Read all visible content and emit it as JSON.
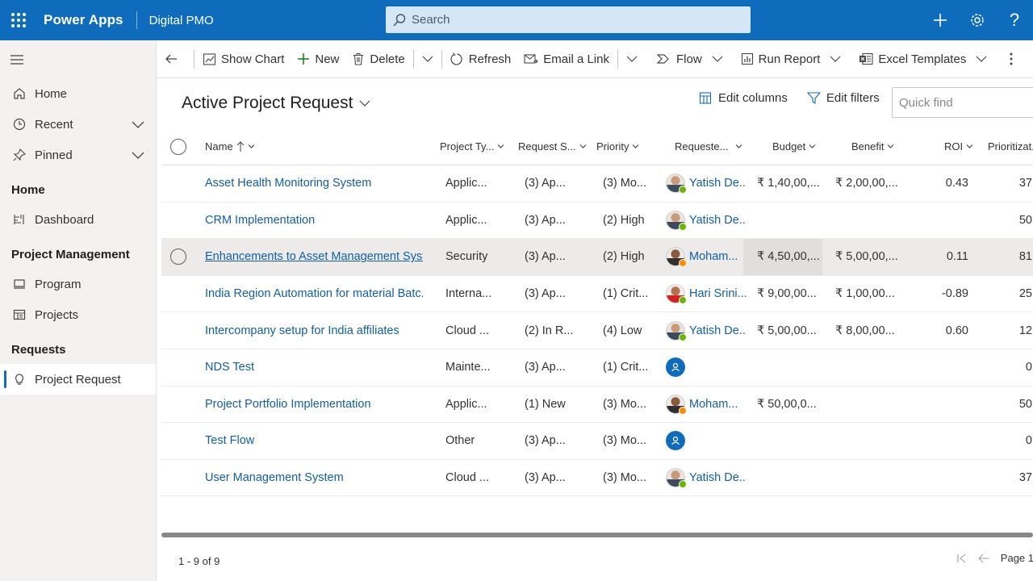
{
  "topbar": {
    "app_name": "Power Apps",
    "environment": "Digital PMO",
    "search_placeholder": "Search",
    "help_label": "?"
  },
  "sidebar": {
    "items_top": [
      {
        "label": "Home",
        "icon": "home-icon"
      },
      {
        "label": "Recent",
        "icon": "clock-icon"
      },
      {
        "label": "Pinned",
        "icon": "pin-icon"
      }
    ],
    "groups": [
      {
        "title": "Home",
        "items": [
          {
            "label": "Dashboard",
            "icon": "dashboard-icon"
          }
        ]
      },
      {
        "title": "Project Management",
        "items": [
          {
            "label": "Program",
            "icon": "monitor-icon"
          },
          {
            "label": "Projects",
            "icon": "projects-icon"
          }
        ]
      },
      {
        "title": "Requests",
        "items": [
          {
            "label": "Project Request",
            "icon": "lightbulb-icon"
          }
        ]
      }
    ]
  },
  "commandbar": {
    "show_chart": "Show Chart",
    "new": "New",
    "delete": "Delete",
    "refresh": "Refresh",
    "email_link": "Email a Link",
    "flow": "Flow",
    "run_report": "Run Report",
    "excel_templates": "Excel Templates"
  },
  "view": {
    "title": "Active Project Request",
    "edit_columns": "Edit columns",
    "edit_filters": "Edit filters",
    "quick_find_placeholder": "Quick find"
  },
  "grid": {
    "columns": [
      "Name",
      "Project Ty...",
      "Request S...",
      "Priority",
      "Requeste...",
      "Budget",
      "Benefit",
      "ROI",
      "Prioritizat..."
    ],
    "rows": [
      {
        "name": "Asset Health Monitoring System",
        "type": "Applic...",
        "status": "(3) Ap...",
        "priority": "(3) Mo...",
        "requester": "Yatish De...",
        "avatar": "photo",
        "budget": "₹ 1,40,00,...",
        "benefit": "₹ 2,00,00,...",
        "roi": "0.43",
        "prior": "37"
      },
      {
        "name": "CRM Implementation",
        "type": "Applic...",
        "status": "(3) Ap...",
        "priority": "(2) High",
        "requester": "Yatish De...",
        "avatar": "photo",
        "budget": "",
        "benefit": "",
        "roi": "",
        "prior": "50"
      },
      {
        "name": "Enhancements to Asset Management Syst...",
        "type": "Security",
        "status": "(3) Ap...",
        "priority": "(2) High",
        "requester": "Moham...",
        "avatar": "photo2",
        "budget": "₹ 4,50,00,...",
        "benefit": "₹ 5,00,00,...",
        "roi": "0.11",
        "prior": "81"
      },
      {
        "name": "India Region Automation for material Batc...",
        "type": "Interna...",
        "status": "(3) Ap...",
        "priority": "(1) Crit...",
        "requester": "Hari Srini...",
        "avatar": "photo3",
        "budget": "₹ 9,00,00...",
        "benefit": "₹ 1,00,00...",
        "roi": "-0.89",
        "prior": "25"
      },
      {
        "name": "Intercompany setup for India affiliates",
        "type": "Cloud ...",
        "status": "(2) In R...",
        "priority": "(4) Low",
        "requester": "Yatish De...",
        "avatar": "photo",
        "budget": "₹ 5,00,00...",
        "benefit": "₹ 8,00,00...",
        "roi": "0.60",
        "prior": "12"
      },
      {
        "name": "NDS Test",
        "type": "Mainte...",
        "status": "(3) Ap...",
        "priority": "(1) Crit...",
        "requester": "",
        "avatar": "blue",
        "budget": "",
        "benefit": "",
        "roi": "",
        "prior": "0"
      },
      {
        "name": "Project Portfolio Implementation",
        "type": "Applic...",
        "status": "(1) New",
        "priority": "(3) Mo...",
        "requester": "Moham...",
        "avatar": "photo2",
        "budget": "₹ 50,00,0...",
        "benefit": "",
        "roi": "",
        "prior": "50"
      },
      {
        "name": "Test Flow",
        "type": "Other",
        "status": "(3) Ap...",
        "priority": "(3) Mo...",
        "requester": "",
        "avatar": "blue",
        "budget": "",
        "benefit": "",
        "roi": "",
        "prior": "0"
      },
      {
        "name": "User Management System",
        "type": "Cloud ...",
        "status": "(3) Ap...",
        "priority": "(3) Mo...",
        "requester": "Yatish De...",
        "avatar": "photo",
        "budget": "",
        "benefit": "",
        "roi": "",
        "prior": "37"
      }
    ]
  },
  "footer": {
    "count": "1 - 9 of 9",
    "page": "Page 1"
  }
}
